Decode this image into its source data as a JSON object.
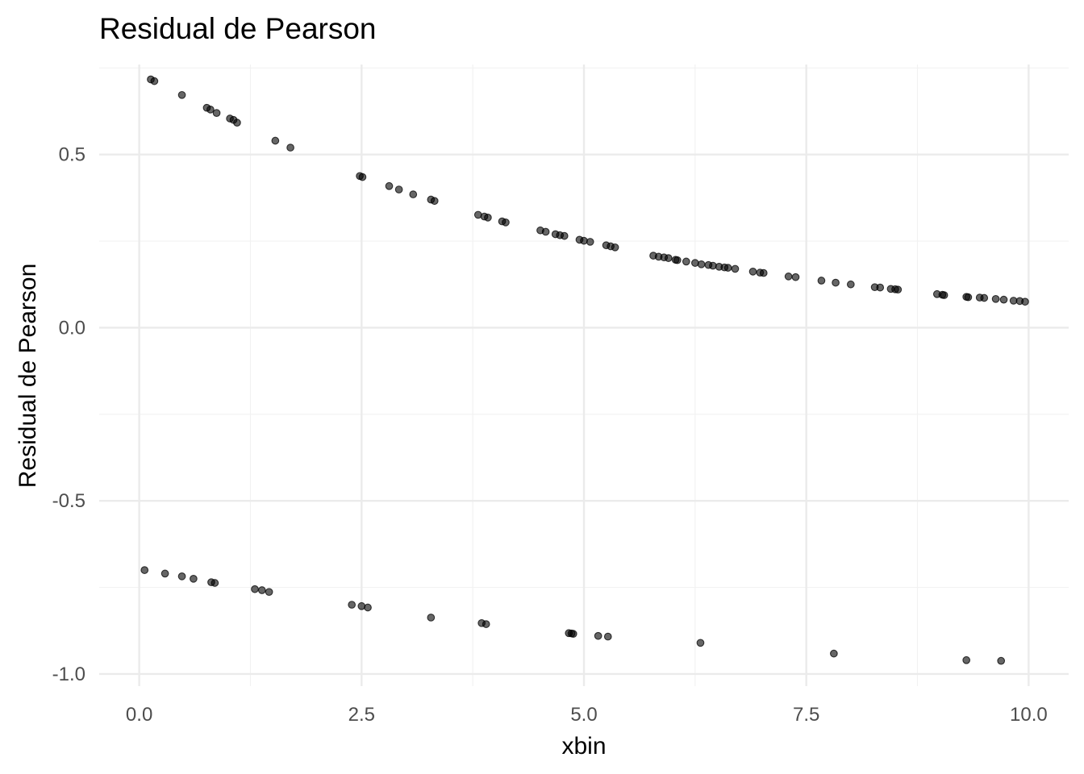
{
  "chart_data": {
    "type": "scatter",
    "title": "Residual de Pearson",
    "xlabel": "xbin",
    "ylabel": "Residual de Pearson",
    "xlim": [
      -0.45,
      10.45
    ],
    "ylim": [
      -1.035,
      0.76
    ],
    "grid": true,
    "x_ticks": [
      0.0,
      2.5,
      5.0,
      7.5,
      10.0
    ],
    "x_tick_labels": [
      "0.0",
      "2.5",
      "5.0",
      "7.5",
      "10.0"
    ],
    "x_minor": [
      1.25,
      3.75,
      6.25,
      8.75
    ],
    "y_ticks": [
      0.5,
      0.0,
      -0.5,
      -1.0
    ],
    "y_tick_labels": [
      "0.5",
      "0.0",
      "-0.5",
      "-1.0"
    ],
    "y_minor": [
      0.75,
      0.25,
      -0.25,
      -0.75
    ],
    "point_color": "#000000",
    "series": [
      {
        "points": [
          [
            0.13,
            0.717
          ],
          [
            0.17,
            0.712
          ],
          [
            0.48,
            0.672
          ],
          [
            0.76,
            0.635
          ],
          [
            0.8,
            0.63
          ],
          [
            0.87,
            0.62
          ],
          [
            1.02,
            0.604
          ],
          [
            1.06,
            0.6
          ],
          [
            1.1,
            0.592
          ],
          [
            1.53,
            0.54
          ],
          [
            1.7,
            0.52
          ],
          [
            2.48,
            0.438
          ],
          [
            2.51,
            0.435
          ],
          [
            2.81,
            0.409
          ],
          [
            2.92,
            0.399
          ],
          [
            3.08,
            0.385
          ],
          [
            3.28,
            0.37
          ],
          [
            3.32,
            0.366
          ],
          [
            3.81,
            0.326
          ],
          [
            3.88,
            0.321
          ],
          [
            3.92,
            0.318
          ],
          [
            4.08,
            0.307
          ],
          [
            4.12,
            0.304
          ],
          [
            4.51,
            0.281
          ],
          [
            4.57,
            0.277
          ],
          [
            4.68,
            0.27
          ],
          [
            4.73,
            0.267
          ],
          [
            4.78,
            0.265
          ],
          [
            4.95,
            0.254
          ],
          [
            5.0,
            0.251
          ],
          [
            5.07,
            0.248
          ],
          [
            5.25,
            0.238
          ],
          [
            5.3,
            0.235
          ],
          [
            5.35,
            0.232
          ],
          [
            5.78,
            0.208
          ],
          [
            5.84,
            0.205
          ],
          [
            5.9,
            0.203
          ],
          [
            5.95,
            0.201
          ],
          [
            6.03,
            0.196
          ],
          [
            6.05,
            0.195
          ],
          [
            6.15,
            0.191
          ],
          [
            6.25,
            0.187
          ],
          [
            6.32,
            0.183
          ],
          [
            6.4,
            0.181
          ],
          [
            6.45,
            0.179
          ],
          [
            6.52,
            0.176
          ],
          [
            6.58,
            0.174
          ],
          [
            6.62,
            0.173
          ],
          [
            6.7,
            0.17
          ],
          [
            6.9,
            0.162
          ],
          [
            6.98,
            0.159
          ],
          [
            7.02,
            0.158
          ],
          [
            7.3,
            0.148
          ],
          [
            7.38,
            0.146
          ],
          [
            7.67,
            0.136
          ],
          [
            7.83,
            0.13
          ],
          [
            8.0,
            0.125
          ],
          [
            8.27,
            0.117
          ],
          [
            8.33,
            0.116
          ],
          [
            8.45,
            0.112
          ],
          [
            8.5,
            0.111
          ],
          [
            8.53,
            0.11
          ],
          [
            8.97,
            0.097
          ],
          [
            9.03,
            0.095
          ],
          [
            9.05,
            0.094
          ],
          [
            9.3,
            0.089
          ],
          [
            9.32,
            0.088
          ],
          [
            9.45,
            0.087
          ],
          [
            9.5,
            0.086
          ],
          [
            9.63,
            0.083
          ],
          [
            9.72,
            0.081
          ],
          [
            9.83,
            0.078
          ],
          [
            9.9,
            0.077
          ],
          [
            9.96,
            0.075
          ]
        ]
      },
      {
        "points": [
          [
            0.06,
            -0.7
          ],
          [
            0.29,
            -0.71
          ],
          [
            0.48,
            -0.718
          ],
          [
            0.61,
            -0.725
          ],
          [
            0.81,
            -0.735
          ],
          [
            0.85,
            -0.737
          ],
          [
            1.3,
            -0.755
          ],
          [
            1.38,
            -0.758
          ],
          [
            1.46,
            -0.763
          ],
          [
            2.39,
            -0.8
          ],
          [
            2.5,
            -0.804
          ],
          [
            2.57,
            -0.808
          ],
          [
            3.28,
            -0.837
          ],
          [
            3.85,
            -0.853
          ],
          [
            3.9,
            -0.856
          ],
          [
            4.83,
            -0.882
          ],
          [
            4.86,
            -0.883
          ],
          [
            4.88,
            -0.884
          ],
          [
            5.16,
            -0.89
          ],
          [
            5.27,
            -0.892
          ],
          [
            6.31,
            -0.91
          ],
          [
            7.81,
            -0.941
          ],
          [
            9.3,
            -0.96
          ],
          [
            9.69,
            -0.962
          ]
        ]
      }
    ]
  }
}
